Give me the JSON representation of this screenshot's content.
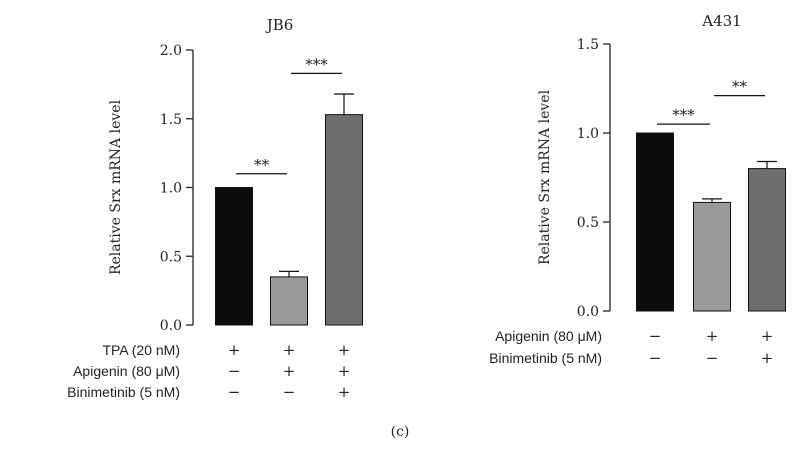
{
  "chart_data": [
    {
      "type": "bar",
      "title": "JB6",
      "ylabel": "Relative Srx mRNA level",
      "ylim": [
        0,
        2.0
      ],
      "yticks": [
        "0.0",
        "0.5",
        "1.0",
        "1.5",
        "2.0"
      ],
      "values": [
        1.0,
        0.35,
        1.53
      ],
      "errors": [
        0,
        0.04,
        0.15
      ],
      "bar_colors": [
        "#0d0d0d",
        "#9a9a9a",
        "#6e6e6e"
      ],
      "significance": [
        {
          "from": 0,
          "to": 1,
          "label": "**",
          "y": 1.1
        },
        {
          "from": 1,
          "to": 2,
          "label": "***",
          "y": 1.83
        }
      ],
      "treatments": [
        {
          "label": "TPA (20 nM)",
          "marks": [
            "+",
            "+",
            "+"
          ]
        },
        {
          "label": "Apigenin (80 μM)",
          "marks": [
            "−",
            "+",
            "+"
          ]
        },
        {
          "label": "Binimetinib (5 nM)",
          "marks": [
            "−",
            "−",
            "+"
          ]
        }
      ]
    },
    {
      "type": "bar",
      "title": "A431",
      "ylabel": "Relative Srx mRNA level",
      "ylim": [
        0,
        1.5
      ],
      "yticks": [
        "0.0",
        "0.5",
        "1.0",
        "1.5"
      ],
      "values": [
        1.0,
        0.61,
        0.8
      ],
      "errors": [
        0,
        0.02,
        0.04
      ],
      "bar_colors": [
        "#0d0d0d",
        "#9a9a9a",
        "#6e6e6e"
      ],
      "significance": [
        {
          "from": 0,
          "to": 1,
          "label": "***",
          "y": 1.05
        },
        {
          "from": 1,
          "to": 2,
          "label": "**",
          "y": 1.21
        }
      ],
      "treatments": [
        {
          "label": "Apigenin (80 μM)",
          "marks": [
            "−",
            "+",
            "+"
          ]
        },
        {
          "label": "Binimetinib (5 nM)",
          "marks": [
            "−",
            "−",
            "+"
          ]
        }
      ]
    }
  ],
  "caption": "(c)"
}
